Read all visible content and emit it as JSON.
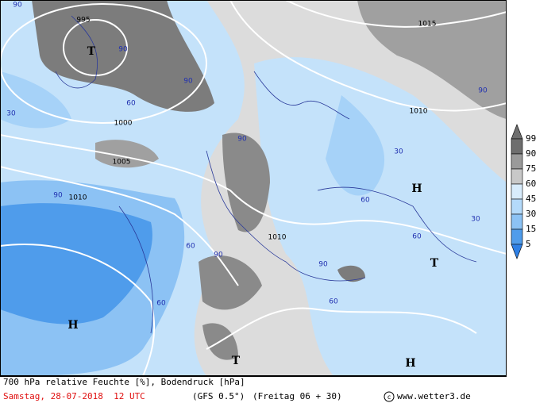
{
  "map": {
    "labels": [
      "995",
      "1000",
      "1005",
      "1010",
      "1010",
      "1010",
      "1015",
      "T",
      "T",
      "T",
      "H",
      "H",
      "H",
      "90",
      "90",
      "90",
      "90",
      "90",
      "90",
      "90",
      "90",
      "60",
      "60",
      "60",
      "60",
      "60",
      "60",
      "30",
      "30",
      "30"
    ]
  },
  "legend": {
    "levels": [
      99,
      90,
      75,
      60,
      45,
      30,
      15,
      5
    ]
  },
  "footer": {
    "description": "700 hPa relative Feuchte [%], Bodendruck [hPa]",
    "date": "Samstag, 28-07-2018  12 UTC",
    "model": "(GFS 0.5°)",
    "run": "(Freitag 06 + 30)",
    "credit": "www.wetter3.de"
  }
}
